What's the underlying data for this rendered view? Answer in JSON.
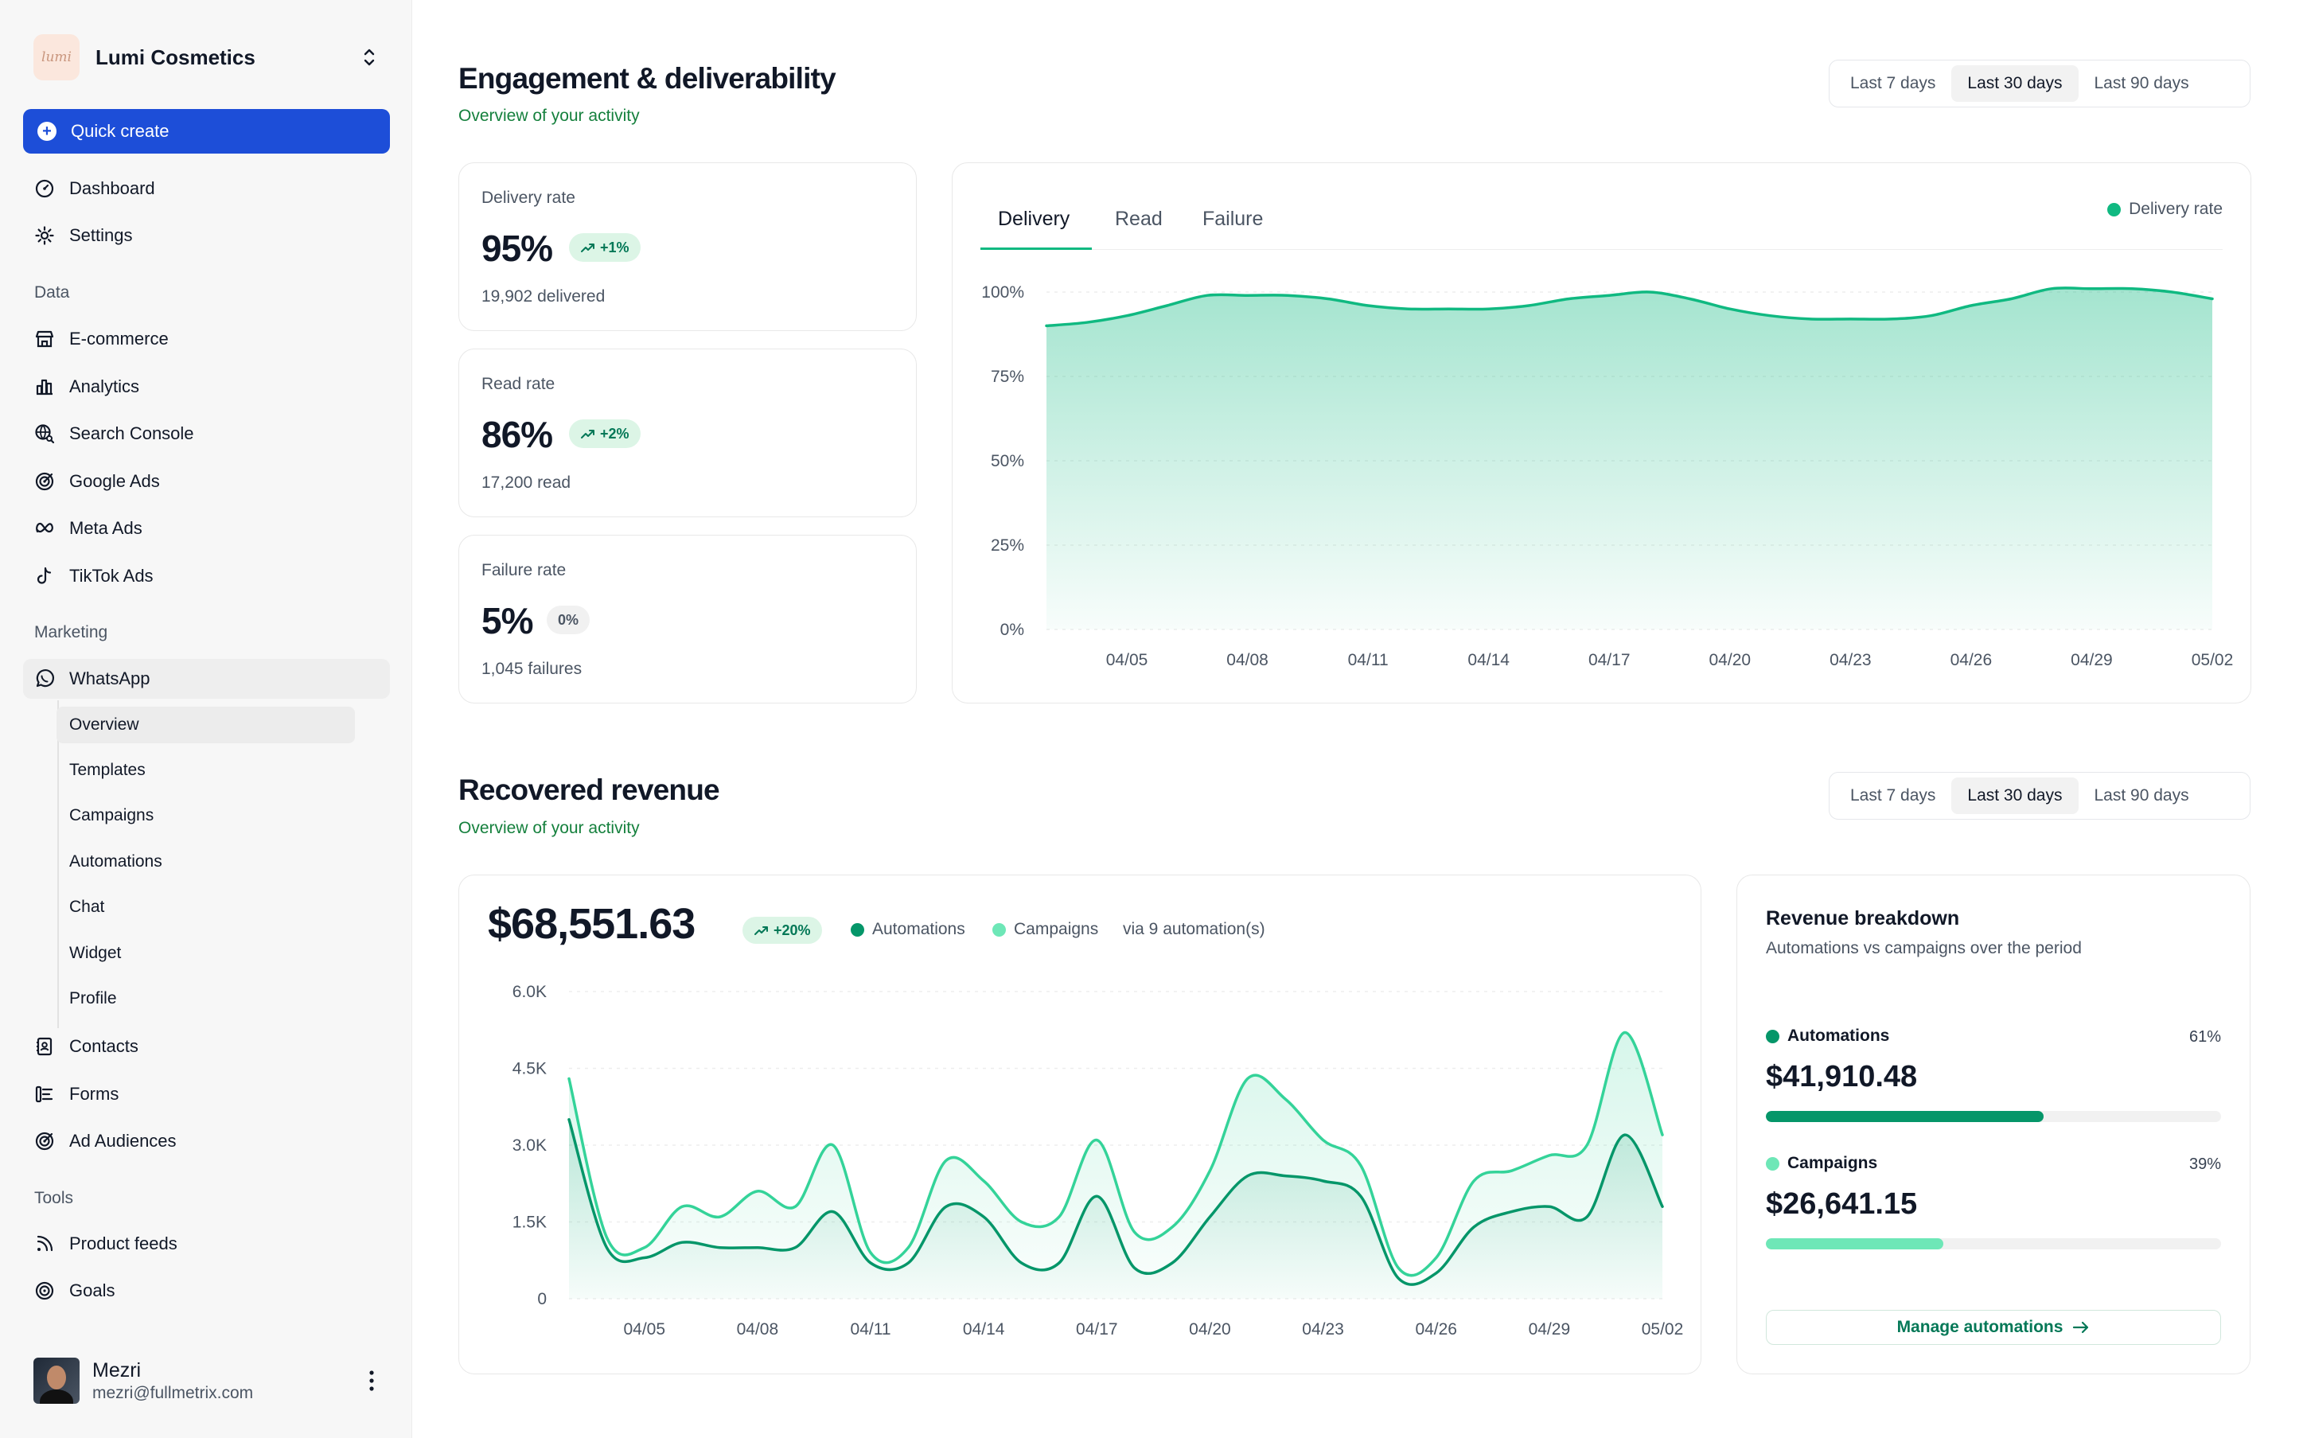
{
  "brand": {
    "logo_text": "lumi",
    "name": "Lumi Cosmetics"
  },
  "quick_create": "Quick create",
  "nav": {
    "top": [
      {
        "label": "Dashboard"
      },
      {
        "label": "Settings"
      }
    ],
    "data_section": "Data",
    "data": [
      {
        "label": "E-commerce"
      },
      {
        "label": "Analytics"
      },
      {
        "label": "Search Console"
      },
      {
        "label": "Google Ads"
      },
      {
        "label": "Meta Ads"
      },
      {
        "label": "TikTok Ads"
      }
    ],
    "marketing_section": "Marketing",
    "whatsapp": "WhatsApp",
    "whatsapp_sub": [
      {
        "label": "Overview"
      },
      {
        "label": "Templates"
      },
      {
        "label": "Campaigns"
      },
      {
        "label": "Automations"
      },
      {
        "label": "Chat"
      },
      {
        "label": "Widget"
      },
      {
        "label": "Profile"
      }
    ],
    "marketing": [
      {
        "label": "Contacts"
      },
      {
        "label": "Forms"
      },
      {
        "label": "Ad Audiences"
      }
    ],
    "tools_section": "Tools",
    "tools": [
      {
        "label": "Product feeds"
      },
      {
        "label": "Goals"
      }
    ]
  },
  "user": {
    "name": "Mezri",
    "email": "mezri@fullmetrix.com"
  },
  "engagement": {
    "title": "Engagement & deliverability",
    "subtitle": "Overview of your activity",
    "ranges": [
      "Last 7 days",
      "Last 30 days",
      "Last 90 days"
    ],
    "selected_range": "Last 30 days",
    "stats": [
      {
        "label": "Delivery rate",
        "value": "95%",
        "badge": "+1%",
        "badge_trend": "up",
        "foot": "19,902 delivered"
      },
      {
        "label": "Read rate",
        "value": "86%",
        "badge": "+2%",
        "badge_trend": "up",
        "foot": "17,200 read"
      },
      {
        "label": "Failure rate",
        "value": "5%",
        "badge": "0%",
        "badge_trend": "none",
        "foot": "1,045 failures"
      }
    ],
    "tabs": [
      "Delivery",
      "Read",
      "Failure"
    ],
    "active_tab": "Delivery"
  },
  "revenue": {
    "title": "Recovered revenue",
    "subtitle": "Overview of your activity",
    "ranges": [
      "Last 7 days",
      "Last 30 days",
      "Last 90 days"
    ],
    "selected_range": "Last 30 days",
    "total": "$68,551.63",
    "badge": "+20%",
    "legend_automations": "Automations",
    "legend_campaigns": "Campaigns",
    "via": "via 9 automation(s)",
    "breakdown": {
      "title": "Revenue breakdown",
      "subtitle": "Automations vs campaigns over the period",
      "automations": {
        "label": "Automations",
        "pct_label": "61%",
        "share": 0.61,
        "amount": "$41,910.48"
      },
      "campaigns": {
        "label": "Campaigns",
        "pct_label": "39%",
        "share": 0.39,
        "amount": "$26,641.15"
      },
      "button": "Manage automations"
    }
  },
  "colors": {
    "accent_blue": "#1d4ed8",
    "delivery_line": "#10b981",
    "automations": "#059669",
    "campaigns": "#34d399",
    "campaigns_bar": "#6ee7b7"
  },
  "chart_data": [
    {
      "type": "area",
      "series": [
        {
          "name": "Delivery rate",
          "x": [
            "04/03",
            "04/04",
            "04/05",
            "04/06",
            "04/07",
            "04/08",
            "04/09",
            "04/10",
            "04/11",
            "04/12",
            "04/13",
            "04/14",
            "04/15",
            "04/16",
            "04/17",
            "04/18",
            "04/19",
            "04/20",
            "04/21",
            "04/22",
            "04/23",
            "04/24",
            "04/25",
            "04/26",
            "04/27",
            "04/28",
            "04/29",
            "04/30",
            "05/01",
            "05/02"
          ],
          "values": [
            90,
            91,
            93,
            96,
            99,
            99,
            99,
            98,
            96,
            95,
            95,
            95,
            96,
            98,
            99,
            100,
            98,
            95,
            93,
            92,
            92,
            92,
            93,
            96,
            98,
            101,
            101,
            101,
            100,
            98
          ]
        }
      ],
      "xticks": [
        "04/05",
        "04/08",
        "04/11",
        "04/14",
        "04/17",
        "04/20",
        "04/23",
        "04/26",
        "04/29",
        "05/02"
      ],
      "yticks": [
        "0%",
        "25%",
        "50%",
        "75%",
        "100%"
      ],
      "ylim": [
        0,
        100
      ],
      "legend": "top-right",
      "grid": true
    },
    {
      "type": "area",
      "x": [
        "04/03",
        "04/04",
        "04/05",
        "04/06",
        "04/07",
        "04/08",
        "04/09",
        "04/10",
        "04/11",
        "04/12",
        "04/13",
        "04/14",
        "04/15",
        "04/16",
        "04/17",
        "04/18",
        "04/19",
        "04/20",
        "04/21",
        "04/22",
        "04/23",
        "04/24",
        "04/25",
        "04/26",
        "04/27",
        "04/28",
        "04/29",
        "04/30",
        "05/01",
        "05/02"
      ],
      "series": [
        {
          "name": "Campaigns",
          "values": [
            4300,
            1200,
            1000,
            1800,
            1600,
            2100,
            1800,
            3000,
            900,
            1000,
            2700,
            2300,
            1500,
            1600,
            3100,
            1300,
            1400,
            2500,
            4300,
            3900,
            3100,
            2600,
            600,
            800,
            2300,
            2500,
            2800,
            3000,
            5200,
            3200
          ]
        },
        {
          "name": "Automations",
          "values": [
            3500,
            1000,
            800,
            1100,
            1000,
            1000,
            1000,
            1700,
            700,
            700,
            1800,
            1600,
            700,
            700,
            2000,
            600,
            700,
            1600,
            2400,
            2400,
            2300,
            2000,
            400,
            500,
            1400,
            1700,
            1800,
            1600,
            3200,
            1800
          ]
        }
      ],
      "xticks": [
        "04/05",
        "04/08",
        "04/11",
        "04/14",
        "04/17",
        "04/20",
        "04/23",
        "04/26",
        "04/29",
        "05/02"
      ],
      "yticks": [
        "0",
        "1.5K",
        "3.0K",
        "4.5K",
        "6.0K"
      ],
      "ylim": [
        0,
        6000
      ],
      "legend": "top",
      "grid": true
    }
  ]
}
